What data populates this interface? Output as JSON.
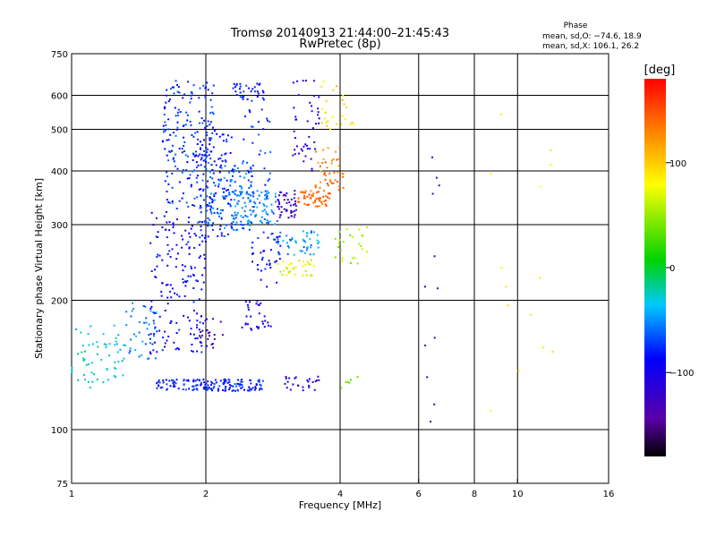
{
  "chart_data": {
    "type": "scatter",
    "title": "Tromsø 20140913 21:44:00–21:45:43",
    "subtitle": "RwPretec (8p)",
    "xlabel": "Frequency [MHz]",
    "ylabel": "Stationary phase Virtual Height [km]",
    "x_scale": "log",
    "y_scale": "log",
    "xlim": [
      1,
      16
    ],
    "ylim": [
      75,
      750
    ],
    "x_ticks": [
      1,
      2,
      4,
      6,
      8,
      10,
      16
    ],
    "y_ticks": [
      75,
      100,
      200,
      300,
      400,
      500,
      600,
      750
    ],
    "x_grid": [
      2,
      4,
      6,
      8,
      10
    ],
    "y_grid": [
      100,
      200,
      300,
      400,
      500,
      600
    ],
    "grid": true,
    "phase_stats": {
      "title": "Phase",
      "line1": "mean, sd,O: −74.6, 18.9",
      "line2": "mean, sd,X: 106.1, 26.2"
    },
    "colorbar": {
      "label": "[deg]",
      "range": [
        -180,
        180
      ],
      "ticks": [
        100,
        0,
        -100
      ],
      "tick_labels": [
        "100",
        "0",
        "−100"
      ]
    },
    "clusters": [
      {
        "f": [
          1.0,
          1.32
        ],
        "h": [
          125,
          175
        ],
        "phase": -30,
        "n": 60
      },
      {
        "f": [
          1.3,
          1.55
        ],
        "h": [
          145,
          200
        ],
        "phase": -55,
        "n": 40
      },
      {
        "f": [
          1.5,
          2.0
        ],
        "h": [
          150,
          330
        ],
        "phase": -90,
        "n": 170
      },
      {
        "f": [
          1.6,
          2.1
        ],
        "h": [
          330,
          650
        ],
        "phase": -75,
        "n": 190
      },
      {
        "f": [
          1.9,
          2.3
        ],
        "h": [
          280,
          500
        ],
        "phase": -80,
        "n": 110
      },
      {
        "f": [
          2.0,
          2.6
        ],
        "h": [
          290,
          420
        ],
        "phase": -60,
        "n": 110
      },
      {
        "f": [
          2.3,
          2.9
        ],
        "h": [
          300,
          360
        ],
        "phase": -55,
        "n": 90
      },
      {
        "f": [
          2.3,
          2.7
        ],
        "h": [
          580,
          640
        ],
        "phase": -85,
        "n": 35
      },
      {
        "f": [
          2.4,
          2.8
        ],
        "h": [
          350,
          560
        ],
        "phase": -75,
        "n": 30
      },
      {
        "f": [
          2.5,
          2.95
        ],
        "h": [
          210,
          290
        ],
        "phase": -85,
        "n": 40
      },
      {
        "f": [
          1.55,
          2.7
        ],
        "h": [
          123,
          131
        ],
        "phase": -80,
        "n": 150
      },
      {
        "f": [
          2.4,
          2.8
        ],
        "h": [
          168,
          200
        ],
        "phase": -100,
        "n": 30
      },
      {
        "f": [
          1.9,
          2.2
        ],
        "h": [
          155,
          185
        ],
        "phase": -120,
        "n": 25
      },
      {
        "f": [
          2.9,
          3.2
        ],
        "h": [
          310,
          360
        ],
        "phase": -125,
        "n": 45
      },
      {
        "f": [
          3.1,
          3.6
        ],
        "h": [
          400,
          650
        ],
        "phase": -110,
        "n": 45
      },
      {
        "f": [
          3.2,
          3.8
        ],
        "h": [
          330,
          360
        ],
        "phase": 140,
        "n": 55
      },
      {
        "f": [
          3.5,
          4.1
        ],
        "h": [
          360,
          460
        ],
        "phase": 135,
        "n": 45
      },
      {
        "f": [
          3.6,
          4.3
        ],
        "h": [
          500,
          650
        ],
        "phase": 95,
        "n": 25
      },
      {
        "f": [
          2.9,
          3.6
        ],
        "h": [
          255,
          290
        ],
        "phase": -50,
        "n": 45
      },
      {
        "f": [
          2.9,
          3.5
        ],
        "h": [
          228,
          250
        ],
        "phase": 70,
        "n": 35
      },
      {
        "f": [
          3.9,
          4.6
        ],
        "h": [
          240,
          300
        ],
        "phase": 50,
        "n": 25
      },
      {
        "f": [
          3.0,
          3.6
        ],
        "h": [
          123,
          133
        ],
        "phase": -110,
        "n": 25
      },
      {
        "f": [
          4.0,
          4.6
        ],
        "h": [
          125,
          133
        ],
        "phase": 40,
        "n": 6
      },
      {
        "f": [
          6.2,
          6.8
        ],
        "h": [
          100,
          470
        ],
        "phase": -120,
        "n": 12
      },
      {
        "f": [
          8.6,
          12.5
        ],
        "h": [
          110,
          610
        ],
        "phase": 80,
        "n": 14
      }
    ]
  }
}
